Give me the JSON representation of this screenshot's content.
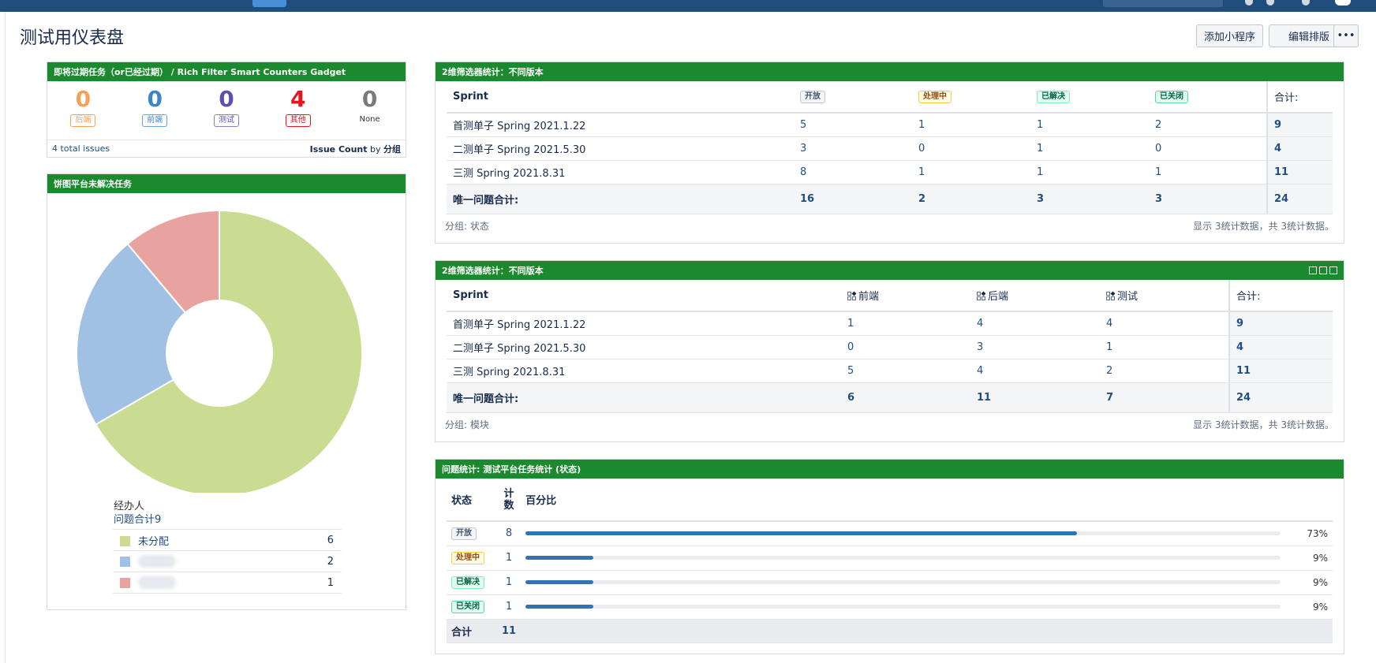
{
  "page": {
    "title": "测试用仪表盘"
  },
  "header": {
    "add_gadget": "添加小程序",
    "edit_layout": "编辑排版",
    "more": "•••"
  },
  "counters_gadget": {
    "title": "即将过期任务（or已经过期） / Rich Filter Smart Counters Gadget",
    "counters": [
      {
        "value": "0",
        "label": "后端",
        "color": "#f6a15a",
        "label_border": "#f6a15a"
      },
      {
        "value": "0",
        "label": "前端",
        "color": "#3f86c9",
        "label_border": "#6aa5db"
      },
      {
        "value": "0",
        "label": "测试",
        "color": "#5e4db2",
        "label_border": "#8a7fc9"
      },
      {
        "value": "4",
        "label": "其他",
        "color": "#e5161e",
        "label_border": "#e5161e"
      },
      {
        "value": "0",
        "label": "None",
        "color": "#7a7a7a",
        "label_border": ""
      }
    ],
    "footer_left": "4 total issues",
    "footer_right_bold": "Issue Count",
    "footer_right_mid": " by ",
    "footer_right_group": "分组"
  },
  "pie_gadget": {
    "title": "饼图平台未解决任务",
    "legend_heading": "经办人",
    "total_label": "问题合计9",
    "chart_data": {
      "type": "pie",
      "title": "",
      "slices": [
        {
          "label": "未分配",
          "value": 6,
          "color": "#c9dc92"
        },
        {
          "label": "",
          "value": 2,
          "color": "#a1c1e4"
        },
        {
          "label": "",
          "value": 1,
          "color": "#e9a39e"
        }
      ],
      "total": 9
    }
  },
  "grid1": {
    "title": "2维筛选器统计：不同版本",
    "row_header": "Sprint",
    "columns": [
      "开放",
      "处理中",
      "已解决",
      "已关闭"
    ],
    "total_header": "合计:",
    "rows": [
      {
        "name": "首测单子 Spring 2021.1.22",
        "values": [
          "5",
          "1",
          "1",
          "2"
        ],
        "total": "9"
      },
      {
        "name": "二测单子 Spring 2021.5.30",
        "values": [
          "3",
          "0",
          "1",
          "0"
        ],
        "total": "4"
      },
      {
        "name": "三测 Spring 2021.8.31",
        "values": [
          "8",
          "1",
          "1",
          "1"
        ],
        "total": "11"
      }
    ],
    "sum": {
      "label": "唯一问题合计:",
      "values": [
        "16",
        "2",
        "3",
        "3"
      ],
      "total": "24"
    },
    "footer_left": "分组: 状态",
    "footer_right": "显示 3统计数据，共 3统计数据。"
  },
  "grid2": {
    "title": "2维筛选器统计：不同版本",
    "row_header": "Sprint",
    "columns": [
      "前端",
      "后端",
      "测试"
    ],
    "total_header": "合计:",
    "rows": [
      {
        "name": "首测单子 Spring 2021.1.22",
        "values": [
          "1",
          "4",
          "4"
        ],
        "total": "9"
      },
      {
        "name": "二测单子 Spring 2021.5.30",
        "values": [
          "0",
          "3",
          "1"
        ],
        "total": "4"
      },
      {
        "name": "三测 Spring 2021.8.31",
        "values": [
          "5",
          "4",
          "2"
        ],
        "total": "11"
      }
    ],
    "sum": {
      "label": "唯一问题合计:",
      "values": [
        "6",
        "11",
        "7"
      ],
      "total": "24"
    },
    "footer_left": "分组: 模块",
    "footer_right": "显示 3统计数据，共 3统计数据。"
  },
  "stats_gadget": {
    "title": "问题统计: 测试平台任务统计 (状态)",
    "headers": {
      "status": "状态",
      "count_line1": "计",
      "count_line2": "数",
      "percent": "百分比"
    },
    "rows": [
      {
        "status": "开放",
        "count": "8",
        "percent": "73%",
        "fraction": 0.73
      },
      {
        "status": "处理中",
        "count": "1",
        "percent": "9%",
        "fraction": 0.09
      },
      {
        "status": "已解决",
        "count": "1",
        "percent": "9%",
        "fraction": 0.09
      },
      {
        "status": "已关闭",
        "count": "1",
        "percent": "9%",
        "fraction": 0.09
      }
    ],
    "total_label": "合计",
    "total_count": "11"
  }
}
